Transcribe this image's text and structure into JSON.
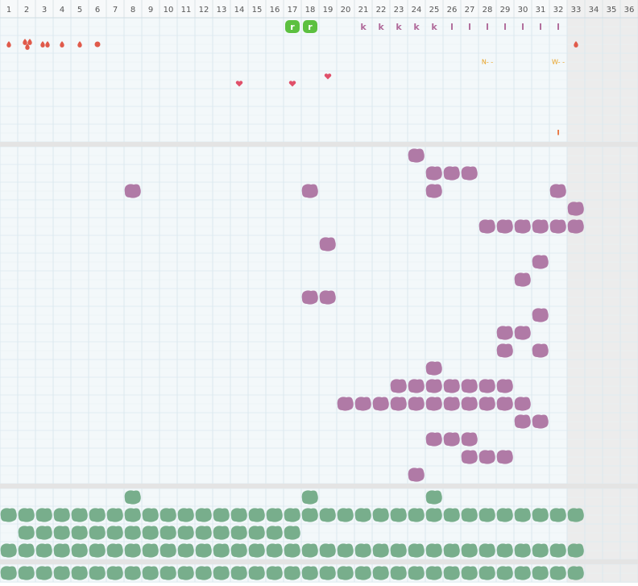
{
  "columns": [
    1,
    2,
    3,
    4,
    5,
    6,
    7,
    8,
    9,
    10,
    11,
    12,
    13,
    14,
    15,
    16,
    17,
    18,
    19,
    20,
    21,
    22,
    23,
    24,
    25,
    26,
    27,
    28,
    29,
    30,
    31,
    32,
    33,
    34,
    35,
    36
  ],
  "track_labels": [
    "r",
    "r",
    "k",
    "k",
    "k",
    "k",
    "k",
    "l",
    "l",
    "l",
    "l",
    "l",
    "l",
    "l",
    "N- -",
    "W- -",
    "I"
  ]
}
